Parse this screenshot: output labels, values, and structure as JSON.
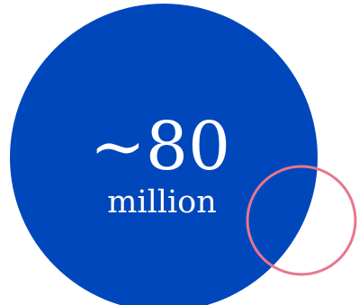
{
  "stat": {
    "value": "~80",
    "unit": "million"
  },
  "colors": {
    "circle_fill": "#0047BB",
    "ring_stroke": "#E8768E",
    "text": "#FFFFFF",
    "background": "#FFFFFF"
  }
}
